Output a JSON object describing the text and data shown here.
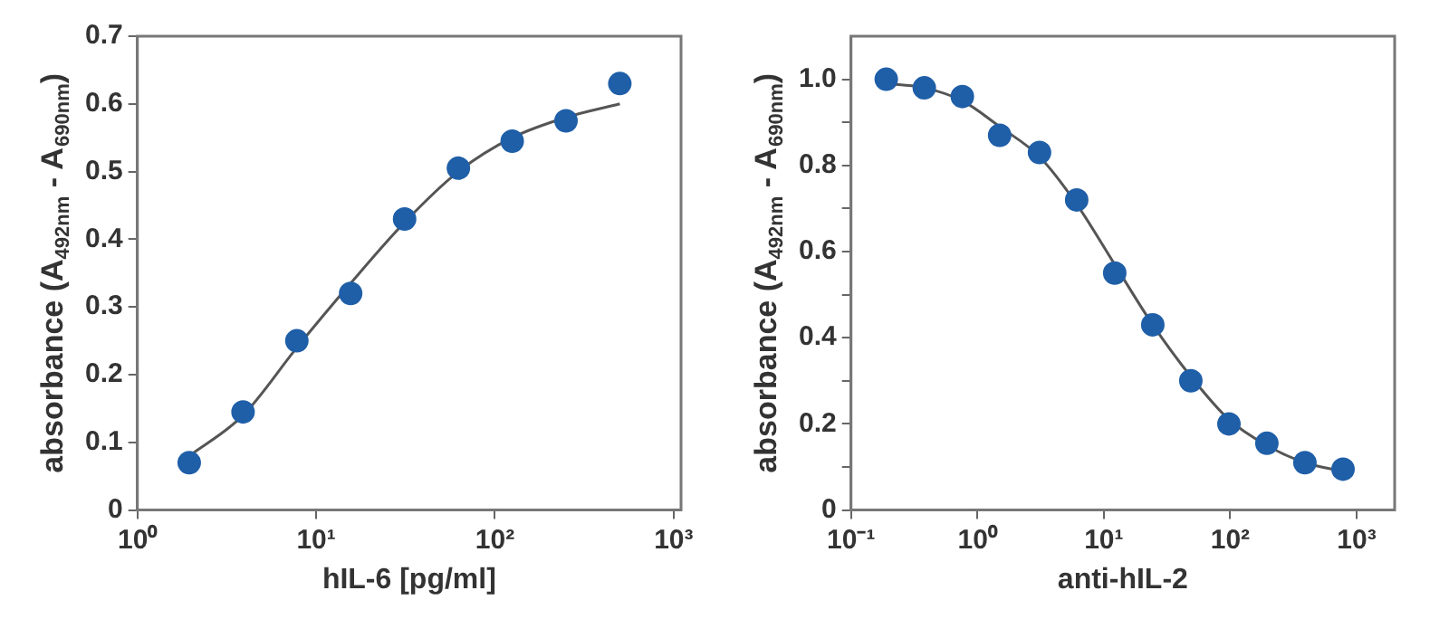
{
  "chart_data": [
    {
      "type": "scatter",
      "xlabel": "hIL-6 [pg/ml]",
      "ylabel": "absorbance (A$_{492nm}$ - A$_{690nm}$)",
      "log": "x",
      "grid": false,
      "legend": false,
      "xlim": [
        1,
        1100
      ],
      "xticks": [
        {
          "value": 1,
          "label": "10⁰"
        },
        {
          "value": 10,
          "label": "10¹"
        },
        {
          "value": 100,
          "label": "10²"
        },
        {
          "value": 1000,
          "label": "10³"
        }
      ],
      "ylim": [
        0,
        0.7
      ],
      "yticks": [
        0,
        0.1,
        0.2,
        0.3,
        0.4,
        0.5,
        0.6,
        0.7
      ],
      "series": [
        {
          "marker": "circle",
          "color": "#1f5fa8",
          "x": [
            1.95,
            3.9,
            7.8,
            15.6,
            31.25,
            62.5,
            125,
            250,
            500
          ],
          "values": [
            0.07,
            0.145,
            0.25,
            0.32,
            0.43,
            0.505,
            0.545,
            0.575,
            0.63
          ]
        },
        {
          "type": "line",
          "marker": "none",
          "color": "#555555",
          "line_style": "solid",
          "x": [
            1.95,
            3.9,
            7.8,
            15.6,
            31.25,
            62.5,
            125,
            250,
            500
          ],
          "values": [
            0.08,
            0.14,
            0.24,
            0.335,
            0.425,
            0.5,
            0.55,
            0.58,
            0.6
          ]
        }
      ]
    },
    {
      "type": "scatter",
      "xlabel": "anti-hIL-2",
      "ylabel": "absorbance (A$_{492nm}$ - A$_{690nm}$)",
      "log": "x",
      "grid": false,
      "legend": false,
      "xlim": [
        0.1,
        2000
      ],
      "xticks": [
        {
          "value": 0.1,
          "label": "10⁻¹"
        },
        {
          "value": 1,
          "label": "10⁰"
        },
        {
          "value": 10,
          "label": "10¹"
        },
        {
          "value": 100,
          "label": "10²"
        },
        {
          "value": 1000,
          "label": "10³"
        }
      ],
      "ylim": [
        0,
        1.1
      ],
      "yticks": [
        0,
        {
          "value": 0.1,
          "label": null
        },
        0.2,
        {
          "value": 0.3,
          "label": null
        },
        0.4,
        {
          "value": 0.5,
          "label": null
        },
        0.6,
        {
          "value": 0.7,
          "label": null
        },
        0.8,
        {
          "value": 0.9,
          "label": null
        },
        {
          "value": 1,
          "label": "1.0"
        }
      ],
      "series": [
        {
          "marker": "circle",
          "color": "#1f5fa8",
          "x": [
            0.19,
            0.38,
            0.76,
            1.5,
            3.1,
            6.1,
            12.2,
            24.4,
            48.8,
            97.7,
            195,
            390,
            781
          ],
          "values": [
            1.0,
            0.98,
            0.96,
            0.87,
            0.83,
            0.72,
            0.55,
            0.43,
            0.3,
            0.2,
            0.155,
            0.11,
            0.095
          ]
        },
        {
          "type": "line",
          "marker": "none",
          "color": "#555555",
          "line_style": "solid",
          "x": [
            0.19,
            0.38,
            0.76,
            1.5,
            3.1,
            6.1,
            12.2,
            24.4,
            48.8,
            97.7,
            195,
            390,
            781
          ],
          "values": [
            0.99,
            0.98,
            0.95,
            0.89,
            0.82,
            0.71,
            0.57,
            0.43,
            0.31,
            0.21,
            0.15,
            0.11,
            0.09
          ]
        }
      ]
    }
  ]
}
